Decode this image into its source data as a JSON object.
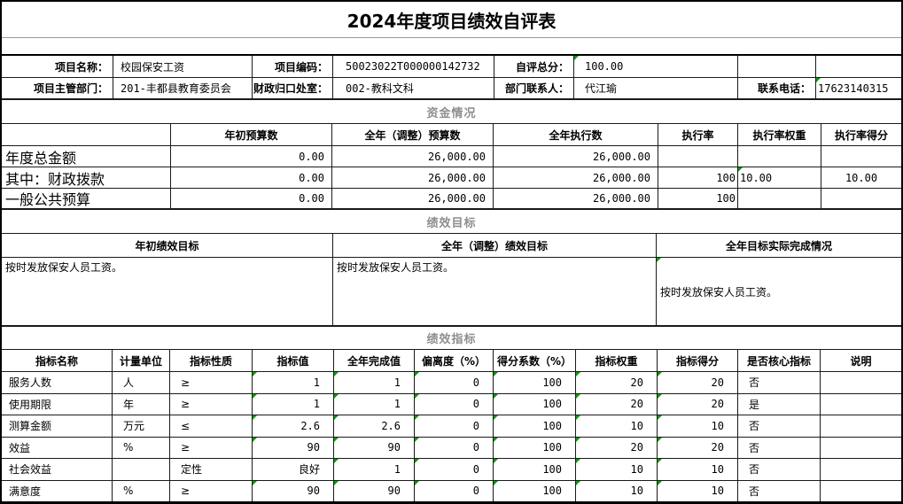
{
  "title": "2024年度项目绩效自评表",
  "info": {
    "row1": [
      {
        "label": "项目名称：",
        "value": "校园保安工资"
      },
      {
        "label": "项目编码：",
        "value": "50023022T000000142732"
      },
      {
        "label": "自评总分：",
        "value": "100.00"
      }
    ],
    "row2": [
      {
        "label": "项目主管部门：",
        "value": "201-丰都县教育委员会"
      },
      {
        "label": "财政归口处室：",
        "value": "002-教科文科"
      },
      {
        "label": "部门联系人：",
        "value": "代江瑜"
      },
      {
        "label": "联系电话：",
        "value": "17623140315"
      }
    ]
  },
  "funds": {
    "section_title": "资金情况",
    "headers": [
      "",
      "年初预算数",
      "全年（调整）预算数",
      "全年执行数",
      "执行率",
      "执行率权重",
      "执行率得分"
    ],
    "rows": [
      {
        "label": "年度总金额",
        "values": [
          "0.00",
          "26,000.00",
          "26,000.00",
          "",
          "",
          ""
        ]
      },
      {
        "label": "其中：财政拨款",
        "values": [
          "0.00",
          "26,000.00",
          "26,000.00",
          "100",
          "10.00",
          "10.00"
        ]
      },
      {
        "label": "一般公共预算",
        "values": [
          "0.00",
          "26,000.00",
          "26,000.00",
          "100",
          "",
          ""
        ]
      }
    ]
  },
  "goals": {
    "section_title": "绩效目标",
    "headers": [
      "年初绩效目标",
      "全年（调整）绩效目标",
      "全年目标实际完成情况"
    ],
    "cells": [
      "按时发放保安人员工资。",
      "按时发放保安人员工资。",
      "按时发放保安人员工资。"
    ]
  },
  "indicators": {
    "section_title": "绩效指标",
    "headers": [
      "指标名称",
      "计量单位",
      "指标性质",
      "指标值",
      "全年完成值",
      "偏离度（%）",
      "得分系数（%）",
      "指标权重",
      "指标得分",
      "是否核心指标",
      "说明"
    ],
    "rows": [
      [
        "服务人数",
        "人",
        "≥",
        "1",
        "1",
        "0",
        "100",
        "20",
        "20",
        "否",
        ""
      ],
      [
        "使用期限",
        "年",
        "≥",
        "1",
        "1",
        "0",
        "100",
        "20",
        "20",
        "是",
        ""
      ],
      [
        "测算金额",
        "万元",
        "≤",
        "2.6",
        "2.6",
        "0",
        "100",
        "10",
        "10",
        "否",
        ""
      ],
      [
        "效益",
        "%",
        "≥",
        "90",
        "90",
        "0",
        "100",
        "20",
        "20",
        "否",
        ""
      ],
      [
        "社会效益",
        "",
        "定性",
        "良好",
        "1",
        "0",
        "100",
        "10",
        "10",
        "否",
        ""
      ],
      [
        "满意度",
        "%",
        "≥",
        "90",
        "90",
        "0",
        "100",
        "10",
        "10",
        "否",
        ""
      ]
    ]
  },
  "colors": {
    "section_header": "#8e8e8e",
    "green_triangle": "#00a000",
    "grid_line": "#1a1a1a"
  }
}
